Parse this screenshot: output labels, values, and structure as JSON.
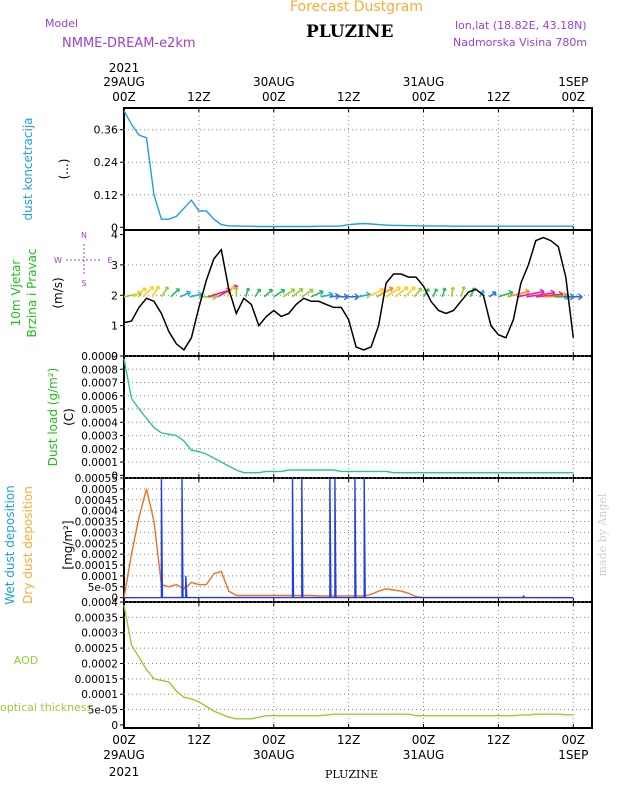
{
  "header": {
    "top_title": "Forecast Dustgram",
    "station": "PLUZINE",
    "model_label": "Model",
    "model_name": "NMME-DREAM-e2km",
    "lonlat": "lon,lat (18.82E, 43.18N)",
    "altitude": "Nadmorska Visina 780m",
    "watermark": "made by Angel",
    "bottom_label": "PLUZINE"
  },
  "colors": {
    "purple": "#a040d0",
    "cyan": "#1f9fe0",
    "green": "#20c020",
    "orange": "#ffaa33",
    "teal": "#2cc59a",
    "aod": "#9acd32",
    "wet": "#1f3fe0",
    "dry": "#f07020",
    "wind_speed": "#000000"
  },
  "chart_data": [
    {
      "type": "line",
      "name": "dust-concentration",
      "ylabel": "dust koncetracija",
      "unit_label": "(...)",
      "yticks": [
        "0.36",
        "0.24",
        "0.12",
        "0"
      ],
      "ylim": [
        -0.01,
        0.44
      ],
      "x": [
        0,
        3,
        6,
        9,
        12,
        15,
        18,
        21,
        24,
        27,
        30,
        33,
        36,
        39,
        42,
        45,
        48,
        51,
        54,
        57,
        60,
        63,
        66,
        69,
        72,
        75,
        78,
        81,
        84,
        87,
        90,
        93,
        96,
        99,
        102,
        105,
        108,
        111,
        114,
        117,
        120,
        123,
        126,
        129,
        132,
        135,
        138,
        141,
        144,
        147,
        150,
        153,
        156,
        159,
        162,
        165,
        168,
        171,
        174,
        177,
        180
      ],
      "series": [
        {
          "color": "#1f9fe0",
          "values": [
            0.43,
            0.38,
            0.34,
            0.33,
            0.12,
            0.03,
            0.03,
            0.04,
            0.07,
            0.1,
            0.06,
            0.06,
            0.03,
            0.01,
            0.005,
            0.005,
            0.004,
            0.004,
            0.003,
            0.003,
            0.003,
            0.003,
            0.003,
            0.003,
            0.003,
            0.003,
            0.004,
            0.004,
            0.004,
            0.005,
            0.01,
            0.012,
            0.014,
            0.012,
            0.01,
            0.008,
            0.007,
            0.007,
            0.006,
            0.006,
            0.005,
            0.005,
            0.005,
            0.005,
            0.004,
            0.004,
            0.004,
            0.004,
            0.004,
            0.004,
            0.004,
            0.004,
            0.004,
            0.004,
            0.004,
            0.004,
            0.004,
            0.004,
            0.004,
            0.004,
            0.004
          ]
        }
      ]
    },
    {
      "type": "line",
      "name": "wind",
      "ylabel": "10m Vjetar",
      "ylabel2": "Brzina i Pravac",
      "unit_label": "(m/s)",
      "compass": {
        "n": "N",
        "s": "S",
        "e": "E",
        "w": "W"
      },
      "yticks": [
        "4",
        "3",
        "2",
        "1",
        "0"
      ],
      "ylim": [
        0,
        4.15
      ],
      "x": [
        0,
        3,
        6,
        9,
        12,
        15,
        18,
        21,
        24,
        27,
        30,
        33,
        36,
        39,
        42,
        45,
        48,
        51,
        54,
        57,
        60,
        63,
        66,
        69,
        72,
        75,
        78,
        81,
        84,
        87,
        90,
        93,
        96,
        99,
        102,
        105,
        108,
        111,
        114,
        117,
        120,
        123,
        126,
        129,
        132,
        135,
        138,
        141,
        144,
        147,
        150,
        153,
        156,
        159,
        162,
        165,
        168,
        171,
        174,
        177,
        180
      ],
      "series": [
        {
          "name": "speed",
          "color": "#000000",
          "values": [
            1.1,
            1.15,
            1.6,
            1.9,
            1.8,
            1.4,
            0.8,
            0.4,
            0.2,
            0.6,
            1.6,
            2.5,
            3.2,
            3.5,
            2.2,
            1.4,
            1.9,
            1.7,
            1.0,
            1.3,
            1.5,
            1.3,
            1.4,
            1.7,
            1.9,
            1.8,
            1.8,
            1.7,
            1.6,
            1.6,
            1.2,
            0.3,
            0.2,
            0.3,
            1.0,
            2.4,
            2.7,
            2.7,
            2.6,
            2.6,
            2.3,
            1.8,
            1.5,
            1.4,
            1.5,
            1.8,
            2.1,
            2.2,
            2.0,
            1.0,
            0.7,
            0.6,
            1.2,
            2.4,
            3.0,
            3.8,
            3.9,
            3.8,
            3.6,
            2.6,
            0.6
          ]
        }
      ]
    },
    {
      "type": "line",
      "name": "dust-load",
      "ylabel": "Dust load (g/m²)",
      "unit_label": "(C)",
      "yticks": [
        "0.0009",
        "0.0008",
        "0.0007",
        "0.0006",
        "0.0005",
        "0.0004",
        "0.0003",
        "0.0002",
        "0.0001",
        "0"
      ],
      "ylim": [
        -2e-05,
        0.0009
      ],
      "x": [
        0,
        3,
        6,
        9,
        12,
        15,
        18,
        21,
        24,
        27,
        30,
        33,
        36,
        39,
        42,
        45,
        48,
        51,
        54,
        57,
        60,
        63,
        66,
        69,
        72,
        75,
        78,
        81,
        84,
        87,
        90,
        93,
        96,
        99,
        102,
        105,
        108,
        111,
        114,
        117,
        120,
        123,
        126,
        129,
        132,
        135,
        138,
        141,
        144,
        147,
        150,
        153,
        156,
        159,
        162,
        165,
        168,
        171,
        174,
        177,
        180
      ],
      "series": [
        {
          "color": "#2cc59a",
          "values": [
            0.00088,
            0.00058,
            0.0005,
            0.00043,
            0.00036,
            0.00032,
            0.00031,
            0.0003,
            0.00026,
            0.00019,
            0.00018,
            0.00016,
            0.00013,
            0.0001,
            7e-05,
            4e-05,
            2e-05,
            2e-05,
            2e-05,
            3e-05,
            3e-05,
            3e-05,
            4e-05,
            4e-05,
            4e-05,
            4e-05,
            4e-05,
            4e-05,
            4e-05,
            3e-05,
            3e-05,
            3e-05,
            3e-05,
            3e-05,
            3e-05,
            3e-05,
            2e-05,
            2e-05,
            2e-05,
            2e-05,
            2e-05,
            2e-05,
            2e-05,
            2e-05,
            2e-05,
            2e-05,
            2e-05,
            2e-05,
            2e-05,
            2e-05,
            2e-05,
            2e-05,
            2e-05,
            2e-05,
            2e-05,
            2e-05,
            2e-05,
            2e-05,
            2e-05,
            2e-05,
            2e-05
          ]
        }
      ]
    },
    {
      "type": "line",
      "name": "deposition",
      "ylabel_wet": "Wet dust deposition",
      "ylabel_dry": "Dry dust deposition",
      "unit_label": "[mg/m²]",
      "yticks": [
        "0.00055",
        "0.0005",
        "0.00045",
        "0.0004",
        "0.00035",
        "0.0003",
        "0.00025",
        "0.0002",
        "0.00015",
        "0.0001",
        "5e-05",
        "0"
      ],
      "ylim": [
        -2e-05,
        0.00055
      ],
      "x": [
        0,
        3,
        6,
        9,
        12,
        15,
        18,
        21,
        24,
        27,
        30,
        33,
        36,
        39,
        42,
        45,
        48,
        51,
        54,
        57,
        60,
        63,
        66,
        69,
        72,
        75,
        78,
        81,
        84,
        87,
        90,
        93,
        96,
        99,
        102,
        105,
        108,
        111,
        114,
        117,
        120,
        123,
        126,
        129,
        132,
        135,
        138,
        141,
        144,
        147,
        150,
        153,
        156,
        159,
        162,
        165,
        168,
        171,
        174,
        177,
        180
      ],
      "series": [
        {
          "name": "Wet dust deposition",
          "color": "#1f3fe0",
          "values": [
            0,
            0,
            0,
            0,
            0,
            0,
            0,
            0,
            0,
            0,
            0,
            0,
            0,
            0,
            0,
            0,
            0,
            0,
            0,
            0,
            0,
            0,
            0,
            0,
            0,
            0,
            0,
            0,
            0,
            0,
            0,
            0,
            0,
            0,
            0,
            0,
            0,
            0,
            0,
            0,
            0,
            0,
            0,
            0,
            0,
            0,
            0,
            0,
            0,
            0,
            0,
            0,
            0,
            0,
            0,
            0,
            0,
            0,
            0,
            0,
            0
          ],
          "spikes": [
            [
              6,
              0.00055
            ],
            [
              9.3,
              0.00055
            ],
            [
              9.9,
              0.0001
            ],
            [
              27,
              0.00055
            ],
            [
              28.5,
              0.00055
            ],
            [
              33,
              0.00055
            ],
            [
              33.8,
              0.00055
            ],
            [
              37,
              0.00055
            ],
            [
              38.5,
              0.00055
            ],
            [
              64,
              1e-05
            ]
          ]
        },
        {
          "name": "Dry dust deposition",
          "color": "#f07020",
          "values": [
            0,
            0.0002,
            0.00037,
            0.0005,
            0.00035,
            6e-05,
            5e-05,
            6e-05,
            4e-05,
            7e-05,
            6e-05,
            6e-05,
            0.00011,
            0.00012,
            3e-05,
            1e-05,
            1e-05,
            1e-05,
            1e-05,
            1e-05,
            1e-05,
            1e-05,
            1e-05,
            1e-05,
            1e-05,
            1e-05,
            8e-06,
            8e-06,
            8e-06,
            8e-06,
            8e-06,
            8e-06,
            8e-06,
            1.5e-05,
            3e-05,
            4e-05,
            3.5e-05,
            3e-05,
            2e-05,
            5e-06,
            0,
            0,
            0,
            0,
            0,
            0,
            0,
            0,
            0,
            0,
            0,
            0,
            0,
            0,
            0,
            0,
            0,
            0,
            0,
            0,
            0
          ]
        }
      ]
    },
    {
      "type": "line",
      "name": "aod",
      "ylabel": "AOD",
      "ylabel2": "optical thickness",
      "yticks": [
        "0.0004",
        "0.00035",
        "0.0003",
        "0.00025",
        "0.0002",
        "0.00015",
        "0.0001",
        "5e-05",
        "0"
      ],
      "ylim": [
        -1e-05,
        0.0004
      ],
      "x": [
        0,
        3,
        6,
        9,
        12,
        15,
        18,
        21,
        24,
        27,
        30,
        33,
        36,
        39,
        42,
        45,
        48,
        51,
        54,
        57,
        60,
        63,
        66,
        69,
        72,
        75,
        78,
        81,
        84,
        87,
        90,
        93,
        96,
        99,
        102,
        105,
        108,
        111,
        114,
        117,
        120,
        123,
        126,
        129,
        132,
        135,
        138,
        141,
        144,
        147,
        150,
        153,
        156,
        159,
        162,
        165,
        168,
        171,
        174,
        177,
        180
      ],
      "series": [
        {
          "color": "#9acd32",
          "values": [
            0.00039,
            0.00026,
            0.00022,
            0.00018,
            0.00015,
            0.000145,
            0.00014,
            0.00011,
            9e-05,
            8.5e-05,
            7.5e-05,
            6e-05,
            4.5e-05,
            3.5e-05,
            2.5e-05,
            2e-05,
            2e-05,
            2e-05,
            2.5e-05,
            3e-05,
            3e-05,
            3e-05,
            3e-05,
            3e-05,
            3e-05,
            3e-05,
            3e-05,
            3.2e-05,
            3.5e-05,
            3.5e-05,
            3.5e-05,
            3.5e-05,
            3.5e-05,
            3.5e-05,
            3.5e-05,
            3.5e-05,
            3.5e-05,
            3.5e-05,
            3.5e-05,
            3e-05,
            3e-05,
            3e-05,
            3e-05,
            3e-05,
            3e-05,
            3e-05,
            3e-05,
            3e-05,
            3e-05,
            3e-05,
            3e-05,
            3e-05,
            3e-05,
            3.2e-05,
            3.2e-05,
            3.5e-05,
            3.5e-05,
            3.5e-05,
            3.5e-05,
            3.3e-05,
            3.3e-05
          ]
        }
      ]
    }
  ],
  "time_axis": {
    "year": "2021",
    "ticks": [
      {
        "h": 0,
        "top": "00Z",
        "sub": "29AUG"
      },
      {
        "h": 12,
        "top": "12Z",
        "sub": ""
      },
      {
        "h": 24,
        "top": "00Z",
        "sub": "30AUG"
      },
      {
        "h": 36,
        "top": "12Z",
        "sub": ""
      },
      {
        "h": 48,
        "top": "00Z",
        "sub": "31AUG"
      },
      {
        "h": 60,
        "top": "12Z",
        "sub": ""
      },
      {
        "h": 72,
        "top": "00Z",
        "sub": "1SEP"
      }
    ]
  },
  "wind_arrows": [
    {
      "h": 0,
      "d": 250,
      "s": 2.1
    },
    {
      "h": 1.5,
      "d": 220,
      "s": 2.3
    },
    {
      "h": 3,
      "d": 210,
      "s": 2.5
    },
    {
      "h": 4.5,
      "d": 200,
      "s": 2.4
    },
    {
      "h": 6,
      "d": 200,
      "s": 2.2
    },
    {
      "h": 7.5,
      "d": 210,
      "s": 1.8
    },
    {
      "h": 9,
      "d": 230,
      "s": 1.2
    },
    {
      "h": 10.5,
      "d": 250,
      "s": 1.3
    },
    {
      "h": 12,
      "d": 270,
      "s": 2.0
    },
    {
      "h": 13.5,
      "d": 240,
      "s": 3.3
    },
    {
      "h": 15,
      "d": 225,
      "s": 3.7
    },
    {
      "h": 16.5,
      "d": 200,
      "s": 2.4
    },
    {
      "h": 18,
      "d": 180,
      "s": 1.9
    },
    {
      "h": 19.5,
      "d": 190,
      "s": 1.7
    },
    {
      "h": 21,
      "d": 200,
      "s": 1.5
    },
    {
      "h": 22.5,
      "d": 210,
      "s": 1.6
    },
    {
      "h": 24,
      "d": 220,
      "s": 1.8
    },
    {
      "h": 25.5,
      "d": 220,
      "s": 2.0
    },
    {
      "h": 27,
      "d": 215,
      "s": 2.0
    },
    {
      "h": 28.5,
      "d": 220,
      "s": 1.9
    },
    {
      "h": 30,
      "d": 230,
      "s": 1.6
    },
    {
      "h": 31.5,
      "d": 250,
      "s": 1.2
    },
    {
      "h": 33,
      "d": 260,
      "s": 0.6
    },
    {
      "h": 34.5,
      "d": 270,
      "s": 0.5
    },
    {
      "h": 36,
      "d": 270,
      "s": 0.7
    },
    {
      "h": 37.5,
      "d": 250,
      "s": 1.2
    },
    {
      "h": 39,
      "d": 230,
      "s": 2.6
    },
    {
      "h": 40.5,
      "d": 225,
      "s": 2.8
    },
    {
      "h": 42,
      "d": 220,
      "s": 2.7
    },
    {
      "h": 43.5,
      "d": 215,
      "s": 2.6
    },
    {
      "h": 45,
      "d": 210,
      "s": 2.4
    },
    {
      "h": 46.5,
      "d": 205,
      "s": 1.9
    },
    {
      "h": 48,
      "d": 200,
      "s": 1.6
    },
    {
      "h": 49.5,
      "d": 195,
      "s": 1.5
    },
    {
      "h": 51,
      "d": 190,
      "s": 1.7
    },
    {
      "h": 52.5,
      "d": 185,
      "s": 1.9
    },
    {
      "h": 54,
      "d": 190,
      "s": 2.1
    },
    {
      "h": 55.5,
      "d": 195,
      "s": 1.8
    },
    {
      "h": 57,
      "d": 200,
      "s": 1.0
    },
    {
      "h": 58.5,
      "d": 220,
      "s": 0.8
    },
    {
      "h": 60,
      "d": 240,
      "s": 1.8
    },
    {
      "h": 61.5,
      "d": 245,
      "s": 3.0
    },
    {
      "h": 63,
      "d": 250,
      "s": 3.8
    },
    {
      "h": 64.5,
      "d": 255,
      "s": 3.9
    },
    {
      "h": 66,
      "d": 260,
      "s": 3.6
    },
    {
      "h": 67.5,
      "d": 265,
      "s": 2.8
    },
    {
      "h": 69,
      "d": 270,
      "s": 1.5
    },
    {
      "h": 70.5,
      "d": 270,
      "s": 0.7
    },
    {
      "h": 72,
      "d": 270,
      "s": 0.5
    }
  ]
}
